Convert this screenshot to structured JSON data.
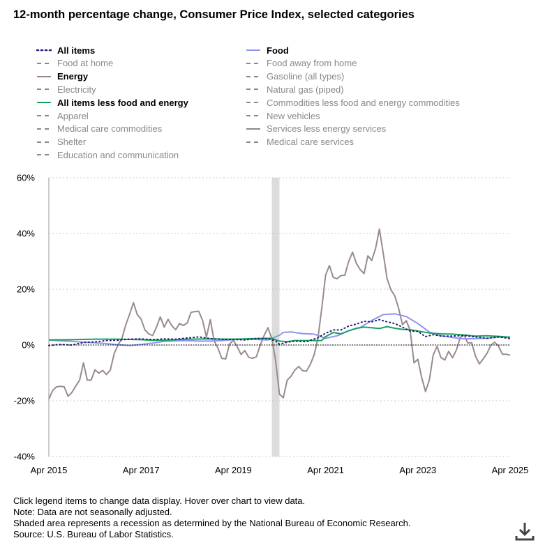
{
  "title": "12-month percentage change, Consumer Price Index, selected categories",
  "legend": [
    {
      "label": "All items",
      "active": true,
      "style": "dotted",
      "color": "#1f1f7a"
    },
    {
      "label": "Food",
      "active": true,
      "style": "solid",
      "color": "#8e93f0"
    },
    {
      "label": "Food at home",
      "active": false,
      "style": "dashed",
      "color": "#888888"
    },
    {
      "label": "Food away from home",
      "active": false,
      "style": "dashed",
      "color": "#888888"
    },
    {
      "label": "Energy",
      "active": true,
      "style": "solid",
      "color": "#9a8a8e"
    },
    {
      "label": "Gasoline (all types)",
      "active": false,
      "style": "dashed",
      "color": "#888888"
    },
    {
      "label": "Electricity",
      "active": false,
      "style": "dashed",
      "color": "#888888"
    },
    {
      "label": "Natural gas (piped)",
      "active": false,
      "style": "dashed",
      "color": "#888888"
    },
    {
      "label": "All items less food and energy",
      "active": true,
      "style": "solid",
      "color": "#1aa15e"
    },
    {
      "label": "Commodities less food and energy commodities",
      "active": false,
      "style": "dashed",
      "color": "#888888"
    },
    {
      "label": "Apparel",
      "active": false,
      "style": "dashed",
      "color": "#888888"
    },
    {
      "label": "New vehicles",
      "active": false,
      "style": "dashed",
      "color": "#888888"
    },
    {
      "label": "Medical care commodities",
      "active": false,
      "style": "dashed",
      "color": "#888888"
    },
    {
      "label": "Services less energy services",
      "active": false,
      "style": "solid",
      "color": "#888888"
    },
    {
      "label": "Shelter",
      "active": false,
      "style": "dashed",
      "color": "#888888"
    },
    {
      "label": "Medical care services",
      "active": false,
      "style": "dashed",
      "color": "#888888"
    },
    {
      "label": "Education and communication",
      "active": false,
      "style": "dashed",
      "color": "#888888"
    }
  ],
  "notes": {
    "instruction": "Click legend items to change data display. Hover over chart to view data.",
    "note": "Note: Data are not seasonally adjusted.",
    "shaded": "Shaded area represents a recession as determined by the National Bureau of Economic Research.",
    "source": "Source: U.S. Bureau of Labor Statistics."
  },
  "download_icon": "download-icon",
  "chart_data": {
    "type": "line",
    "title": "12-month percentage change, Consumer Price Index, selected categories",
    "xlabel": "",
    "ylabel": "",
    "ylim": [
      -40,
      60
    ],
    "yticks": [
      -40,
      -20,
      0,
      20,
      40,
      60
    ],
    "ytick_labels": [
      "-40%",
      "-20%",
      "0%",
      "20%",
      "40%",
      "60%"
    ],
    "xlim": [
      "2015-04",
      "2025-04"
    ],
    "xtick_labels": [
      "Apr 2015",
      "Apr 2017",
      "Apr 2019",
      "Apr 2021",
      "Apr 2023",
      "Apr 2025"
    ],
    "xticks": [
      0,
      24,
      48,
      72,
      96,
      120
    ],
    "recession": {
      "start": 58,
      "end": 60
    },
    "zero_line": true,
    "series": [
      {
        "name": "Energy",
        "color": "#9a8a8e",
        "style": "solid",
        "points": [
          [
            0,
            -19.4
          ],
          [
            1,
            -16.3
          ],
          [
            2,
            -15.0
          ],
          [
            3,
            -14.8
          ],
          [
            4,
            -15.0
          ],
          [
            5,
            -18.4
          ],
          [
            6,
            -17.0
          ],
          [
            7,
            -14.7
          ],
          [
            8,
            -12.6
          ],
          [
            9,
            -6.4
          ],
          [
            10,
            -12.6
          ],
          [
            11,
            -12.6
          ],
          [
            12,
            -8.9
          ],
          [
            13,
            -10.1
          ],
          [
            14,
            -9.1
          ],
          [
            15,
            -10.6
          ],
          [
            16,
            -9.0
          ],
          [
            17,
            -3.1
          ],
          [
            18,
            0.0
          ],
          [
            19,
            2.3
          ],
          [
            20,
            7.2
          ],
          [
            21,
            11.0
          ],
          [
            22,
            15.2
          ],
          [
            23,
            10.9
          ],
          [
            24,
            9.3
          ],
          [
            25,
            5.4
          ],
          [
            26,
            4.0
          ],
          [
            27,
            3.4
          ],
          [
            28,
            6.4
          ],
          [
            29,
            10.1
          ],
          [
            30,
            6.4
          ],
          [
            31,
            9.2
          ],
          [
            32,
            6.9
          ],
          [
            33,
            5.5
          ],
          [
            34,
            7.7
          ],
          [
            35,
            7.0
          ],
          [
            36,
            7.9
          ],
          [
            37,
            11.7
          ],
          [
            38,
            12.0
          ],
          [
            39,
            12.1
          ],
          [
            40,
            8.8
          ],
          [
            41,
            2.8
          ],
          [
            42,
            9.1
          ],
          [
            43,
            1.5
          ],
          [
            44,
            -1.2
          ],
          [
            45,
            -4.8
          ],
          [
            46,
            -5.0
          ],
          [
            47,
            0.3
          ],
          [
            48,
            1.7
          ],
          [
            49,
            -0.6
          ],
          [
            50,
            -3.4
          ],
          [
            51,
            -2.0
          ],
          [
            52,
            -4.4
          ],
          [
            53,
            -4.8
          ],
          [
            54,
            -4.2
          ],
          [
            55,
            0.0
          ],
          [
            56,
            3.4
          ],
          [
            57,
            6.2
          ],
          [
            58,
            2.3
          ],
          [
            59,
            -5.7
          ],
          [
            60,
            -17.7
          ],
          [
            61,
            -18.9
          ],
          [
            62,
            -12.6
          ],
          [
            63,
            -11.2
          ],
          [
            64,
            -9.0
          ],
          [
            65,
            -7.7
          ],
          [
            66,
            -9.2
          ],
          [
            67,
            -9.4
          ],
          [
            68,
            -7.0
          ],
          [
            69,
            -3.6
          ],
          [
            70,
            2.4
          ],
          [
            71,
            13.2
          ],
          [
            72,
            25.1
          ],
          [
            73,
            28.5
          ],
          [
            74,
            24.2
          ],
          [
            75,
            23.8
          ],
          [
            76,
            24.9
          ],
          [
            77,
            25.0
          ],
          [
            78,
            30.0
          ],
          [
            79,
            33.3
          ],
          [
            80,
            29.3
          ],
          [
            81,
            27.0
          ],
          [
            82,
            25.6
          ],
          [
            83,
            32.0
          ],
          [
            84,
            30.3
          ],
          [
            85,
            34.6
          ],
          [
            86,
            41.6
          ],
          [
            87,
            32.9
          ],
          [
            88,
            23.8
          ],
          [
            89,
            19.8
          ],
          [
            90,
            17.6
          ],
          [
            91,
            13.1
          ],
          [
            92,
            7.3
          ],
          [
            93,
            8.7
          ],
          [
            94,
            5.2
          ],
          [
            95,
            -6.4
          ],
          [
            96,
            -5.1
          ],
          [
            97,
            -11.7
          ],
          [
            98,
            -16.7
          ],
          [
            99,
            -12.5
          ],
          [
            100,
            -3.6
          ],
          [
            101,
            -0.5
          ],
          [
            102,
            -4.5
          ],
          [
            103,
            -5.4
          ],
          [
            104,
            -2.3
          ],
          [
            105,
            -4.6
          ],
          [
            106,
            -1.9
          ],
          [
            107,
            2.6
          ],
          [
            108,
            3.6
          ],
          [
            109,
            0.7
          ],
          [
            110,
            0.8
          ],
          [
            111,
            -4.0
          ],
          [
            112,
            -6.8
          ],
          [
            113,
            -5.0
          ],
          [
            114,
            -3.0
          ],
          [
            115,
            0.0
          ],
          [
            116,
            1.0
          ],
          [
            117,
            -0.5
          ],
          [
            118,
            -3.3
          ],
          [
            119,
            -3.3
          ],
          [
            120,
            -3.7
          ]
        ]
      },
      {
        "name": "Food",
        "color": "#8e93f0",
        "style": "solid",
        "points": [
          [
            0,
            1.8
          ],
          [
            3,
            1.5
          ],
          [
            6,
            1.3
          ],
          [
            9,
            1.0
          ],
          [
            12,
            0.8
          ],
          [
            15,
            0.5
          ],
          [
            18,
            0.1
          ],
          [
            21,
            -0.2
          ],
          [
            24,
            0.2
          ],
          [
            27,
            0.7
          ],
          [
            30,
            1.3
          ],
          [
            33,
            1.5
          ],
          [
            36,
            1.6
          ],
          [
            39,
            1.4
          ],
          [
            42,
            1.4
          ],
          [
            45,
            1.6
          ],
          [
            48,
            1.9
          ],
          [
            51,
            2.1
          ],
          [
            54,
            2.0
          ],
          [
            57,
            1.8
          ],
          [
            60,
            3.5
          ],
          [
            61,
            4.5
          ],
          [
            63,
            4.7
          ],
          [
            66,
            4.1
          ],
          [
            69,
            3.9
          ],
          [
            72,
            2.4
          ],
          [
            75,
            3.3
          ],
          [
            78,
            5.1
          ],
          [
            81,
            6.3
          ],
          [
            84,
            8.8
          ],
          [
            87,
            10.9
          ],
          [
            90,
            11.2
          ],
          [
            93,
            10.2
          ],
          [
            96,
            7.7
          ],
          [
            99,
            4.6
          ],
          [
            102,
            3.3
          ],
          [
            105,
            2.7
          ],
          [
            108,
            2.2
          ],
          [
            111,
            2.3
          ],
          [
            114,
            2.4
          ],
          [
            117,
            2.8
          ],
          [
            120,
            2.8
          ]
        ]
      },
      {
        "name": "All items less food and energy",
        "color": "#1aa15e",
        "style": "solid",
        "points": [
          [
            0,
            1.8
          ],
          [
            6,
            1.9
          ],
          [
            12,
            2.1
          ],
          [
            18,
            2.1
          ],
          [
            24,
            1.9
          ],
          [
            27,
            1.7
          ],
          [
            30,
            1.7
          ],
          [
            36,
            2.1
          ],
          [
            42,
            2.2
          ],
          [
            48,
            2.1
          ],
          [
            54,
            2.3
          ],
          [
            58,
            2.4
          ],
          [
            60,
            1.4
          ],
          [
            62,
            1.2
          ],
          [
            64,
            1.6
          ],
          [
            68,
            1.6
          ],
          [
            71,
            1.6
          ],
          [
            72,
            3.0
          ],
          [
            74,
            4.5
          ],
          [
            76,
            4.0
          ],
          [
            78,
            5.1
          ],
          [
            80,
            6.0
          ],
          [
            82,
            6.4
          ],
          [
            84,
            6.2
          ],
          [
            86,
            5.9
          ],
          [
            88,
            6.6
          ],
          [
            90,
            6.0
          ],
          [
            92,
            5.6
          ],
          [
            94,
            5.5
          ],
          [
            96,
            5.0
          ],
          [
            99,
            4.3
          ],
          [
            102,
            4.0
          ],
          [
            105,
            3.9
          ],
          [
            108,
            3.6
          ],
          [
            111,
            3.2
          ],
          [
            114,
            3.3
          ],
          [
            117,
            3.1
          ],
          [
            120,
            2.8
          ]
        ]
      },
      {
        "name": "All items",
        "color": "#1f1f7a",
        "style": "dotted",
        "points": [
          [
            0,
            -0.2
          ],
          [
            3,
            0.2
          ],
          [
            6,
            0.0
          ],
          [
            9,
            0.9
          ],
          [
            12,
            1.1
          ],
          [
            15,
            1.6
          ],
          [
            18,
            1.7
          ],
          [
            21,
            2.1
          ],
          [
            24,
            2.2
          ],
          [
            27,
            1.9
          ],
          [
            30,
            2.2
          ],
          [
            33,
            2.1
          ],
          [
            36,
            2.5
          ],
          [
            39,
            2.9
          ],
          [
            42,
            2.3
          ],
          [
            45,
            2.0
          ],
          [
            48,
            2.0
          ],
          [
            51,
            1.8
          ],
          [
            54,
            2.3
          ],
          [
            57,
            2.3
          ],
          [
            59,
            1.5
          ],
          [
            60,
            0.3
          ],
          [
            62,
            1.0
          ],
          [
            64,
            1.4
          ],
          [
            67,
            1.2
          ],
          [
            70,
            2.6
          ],
          [
            72,
            4.2
          ],
          [
            74,
            5.4
          ],
          [
            76,
            5.4
          ],
          [
            78,
            6.8
          ],
          [
            80,
            7.5
          ],
          [
            82,
            8.5
          ],
          [
            84,
            8.3
          ],
          [
            86,
            9.1
          ],
          [
            88,
            8.3
          ],
          [
            90,
            7.7
          ],
          [
            92,
            6.4
          ],
          [
            94,
            5.0
          ],
          [
            96,
            4.9
          ],
          [
            98,
            3.0
          ],
          [
            100,
            3.7
          ],
          [
            102,
            3.2
          ],
          [
            105,
            3.2
          ],
          [
            108,
            3.4
          ],
          [
            111,
            2.9
          ],
          [
            114,
            2.4
          ],
          [
            117,
            2.9
          ],
          [
            120,
            2.3
          ]
        ]
      }
    ]
  }
}
